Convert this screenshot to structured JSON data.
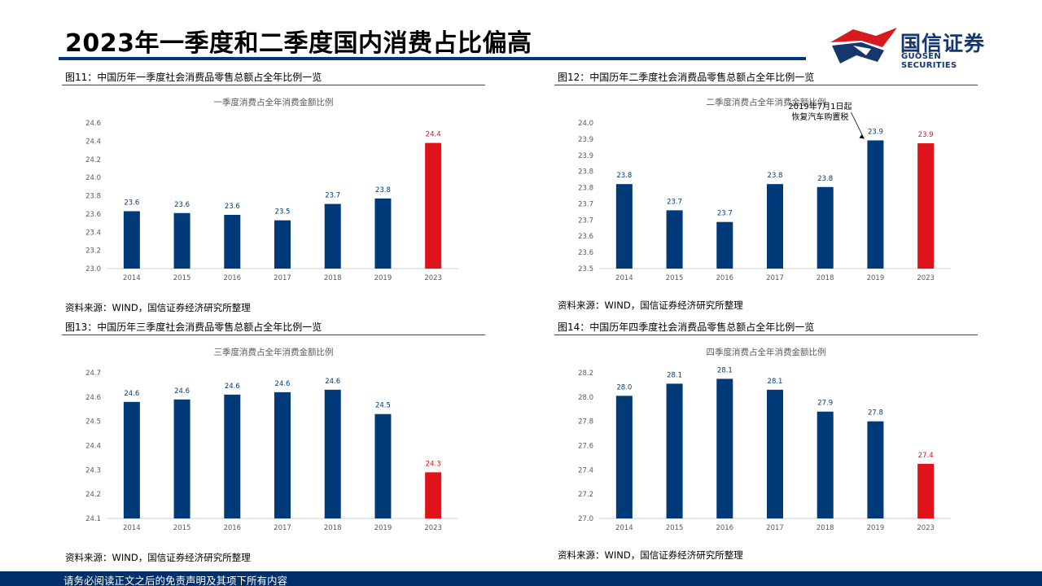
{
  "page": {
    "title": "2023年一季度和二季度国内消费占比偏高",
    "footer": "请务必阅读正文之后的免责声明及其项下所有内容"
  },
  "logo": {
    "name_cn": "国信证券",
    "name_en": "GUOSEN SECURITIES",
    "colors": {
      "red": "#d71920",
      "blue": "#15366e"
    }
  },
  "colors": {
    "bar_normal": "#003a78",
    "bar_highlight": "#e0121a",
    "label_normal": "#003a78",
    "label_highlight": "#e0121a"
  },
  "charts": [
    {
      "caption": "图11：中国历年一季度社会消费品零售总额占全年比例一览",
      "source": "资料来源：WIND，国信证券经济研究所整理"
    },
    {
      "caption": "图12：中国历年二季度社会消费品零售总额占全年比例一览",
      "source": "资料来源：WIND，国信证券经济研究所整理"
    },
    {
      "caption": "图13：中国历年三季度社会消费品零售总额占全年比例一览",
      "source": "资料来源：WIND，国信证券经济研究所整理"
    },
    {
      "caption": "图14：中国历年四季度社会消费品零售总额占全年比例一览",
      "source": "资料来源：WIND，国信证券经济研究所整理"
    }
  ],
  "chart_data": [
    {
      "type": "bar",
      "title": "一季度消费占全年消费金额比例",
      "categories": [
        "2014",
        "2015",
        "2016",
        "2017",
        "2018",
        "2019",
        "2023"
      ],
      "values": [
        23.63,
        23.61,
        23.59,
        23.53,
        23.71,
        23.77,
        24.38
      ],
      "data_labels": [
        "23.6",
        "23.6",
        "23.6",
        "23.5",
        "23.7",
        "23.8",
        "24.4"
      ],
      "highlight_index": 6,
      "ylim": [
        23.0,
        24.6
      ],
      "yticks": [
        "23.0",
        "23.2",
        "23.4",
        "23.6",
        "23.8",
        "24.0",
        "24.2",
        "24.4",
        "24.6"
      ],
      "grid": false
    },
    {
      "type": "bar",
      "title": "二季度消费占全年消费金额比例",
      "categories": [
        "2014",
        "2015",
        "2016",
        "2017",
        "2018",
        "2019",
        "2023"
      ],
      "values": [
        23.79,
        23.7,
        23.66,
        23.79,
        23.78,
        23.94,
        23.93
      ],
      "data_labels": [
        "23.8",
        "23.7",
        "23.7",
        "23.8",
        "23.8",
        "23.9",
        "23.9"
      ],
      "highlight_index": 6,
      "ylim": [
        23.5,
        24.0
      ],
      "yticks": [
        "23.5",
        "23.6",
        "23.6",
        "23.7",
        "23.7",
        "23.8",
        "23.8",
        "23.9",
        "23.9",
        "24.0"
      ],
      "grid": false,
      "annotation": {
        "lines": [
          "2019年7月1日起",
          "恢复汽车购置税"
        ],
        "target_index": 5
      }
    },
    {
      "type": "bar",
      "title": "三季度消费占全年消费金额比例",
      "categories": [
        "2014",
        "2015",
        "2016",
        "2017",
        "2018",
        "2019",
        "2023"
      ],
      "values": [
        24.58,
        24.59,
        24.61,
        24.62,
        24.63,
        24.53,
        24.29
      ],
      "data_labels": [
        "24.6",
        "24.6",
        "24.6",
        "24.6",
        "24.6",
        "24.5",
        "24.3"
      ],
      "highlight_index": 6,
      "ylim": [
        24.1,
        24.7
      ],
      "yticks": [
        "24.1",
        "24.2",
        "24.3",
        "24.4",
        "24.5",
        "24.6",
        "24.7"
      ],
      "grid": false
    },
    {
      "type": "bar",
      "title": "四季度消费占全年消费金额比例",
      "categories": [
        "2014",
        "2015",
        "2016",
        "2017",
        "2018",
        "2019",
        "2023"
      ],
      "values": [
        28.01,
        28.11,
        28.15,
        28.06,
        27.88,
        27.8,
        27.45
      ],
      "data_labels": [
        "28.0",
        "28.1",
        "28.1",
        "28.1",
        "27.9",
        "27.8",
        "27.4"
      ],
      "highlight_index": 6,
      "ylim": [
        27.0,
        28.2
      ],
      "yticks": [
        "27.0",
        "27.2",
        "27.4",
        "27.6",
        "27.8",
        "28.0",
        "28.2"
      ],
      "grid": false
    }
  ]
}
